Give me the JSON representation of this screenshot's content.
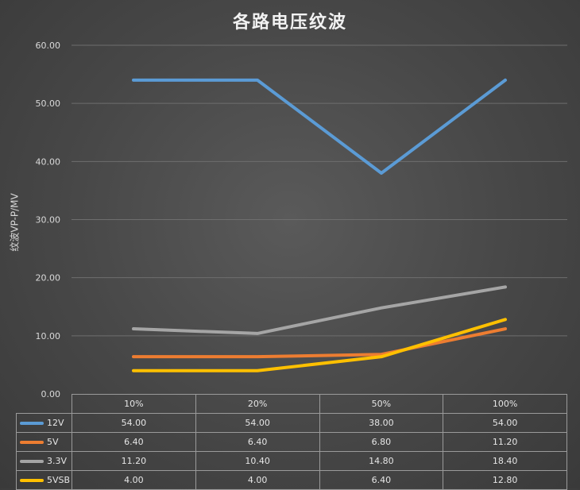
{
  "chart_data": {
    "type": "line",
    "title": "各路电压纹波",
    "ylabel": "纹波VP-P/MV",
    "xlabel": "",
    "categories": [
      "10%",
      "20%",
      "50%",
      "100%"
    ],
    "ylim": [
      0,
      60
    ],
    "yticks": [
      "0.00",
      "10.00",
      "20.00",
      "30.00",
      "40.00",
      "50.00",
      "60.00"
    ],
    "grid": true,
    "legend": "data-table",
    "series": [
      {
        "name": "12V",
        "color": "#5b9bd5",
        "values": [
          54.0,
          54.0,
          38.0,
          54.0
        ],
        "labels": [
          "54.00",
          "54.00",
          "38.00",
          "54.00"
        ]
      },
      {
        "name": "5V",
        "color": "#ed7d31",
        "values": [
          6.4,
          6.4,
          6.8,
          11.2
        ],
        "labels": [
          "6.40",
          "6.40",
          "6.80",
          "11.20"
        ]
      },
      {
        "name": "3.3V",
        "color": "#a5a5a5",
        "values": [
          11.2,
          10.4,
          14.8,
          18.4
        ],
        "labels": [
          "11.20",
          "10.40",
          "14.80",
          "18.40"
        ]
      },
      {
        "name": "5VSB",
        "color": "#ffc000",
        "values": [
          4.0,
          4.0,
          6.4,
          12.8
        ],
        "labels": [
          "4.00",
          "4.00",
          "6.40",
          "12.80"
        ]
      }
    ]
  }
}
